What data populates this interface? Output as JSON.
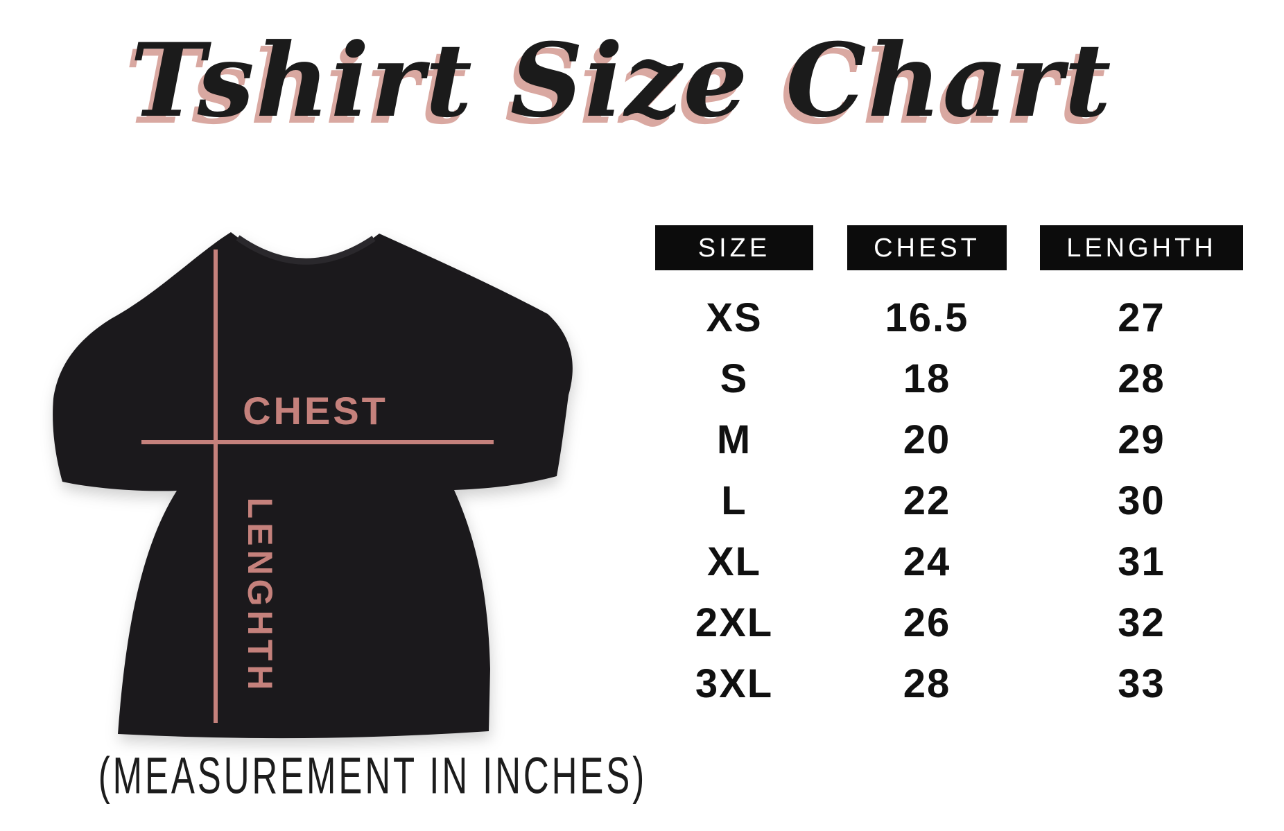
{
  "title": {
    "text": "Tshirt Size Chart"
  },
  "caption": "(MEASUREMENT IN INCHES)",
  "diagram": {
    "chest_label": "CHEST",
    "length_label": "LENGHTH"
  },
  "table": {
    "headers": [
      "SIZE",
      "CHEST",
      "LENGHTH"
    ],
    "rows": [
      [
        "XS",
        "16.5",
        "27"
      ],
      [
        "S",
        "18",
        "28"
      ],
      [
        "M",
        "20",
        "29"
      ],
      [
        "L",
        "22",
        "30"
      ],
      [
        "XL",
        "24",
        "31"
      ],
      [
        "2XL",
        "26",
        "32"
      ],
      [
        "3XL",
        "28",
        "33"
      ]
    ]
  },
  "colors": {
    "rose": "#c5817c",
    "rose_shadow": "#d9a8a1",
    "shirt_black": "#1b191c",
    "header_bg": "#0c0c0c",
    "text_black": "#101010"
  },
  "chart_data": {
    "type": "table",
    "title": "Tshirt Size Chart",
    "note": "(MEASUREMENT IN INCHES)",
    "units": "inches",
    "columns": [
      "SIZE",
      "CHEST",
      "LENGHTH"
    ],
    "rows": [
      {
        "size": "XS",
        "chest": 16.5,
        "length": 27
      },
      {
        "size": "S",
        "chest": 18,
        "length": 28
      },
      {
        "size": "M",
        "chest": 20,
        "length": 29
      },
      {
        "size": "L",
        "chest": 22,
        "length": 30
      },
      {
        "size": "XL",
        "chest": 24,
        "length": 31
      },
      {
        "size": "2XL",
        "chest": 26,
        "length": 32
      },
      {
        "size": "3XL",
        "chest": 28,
        "length": 33
      }
    ]
  }
}
